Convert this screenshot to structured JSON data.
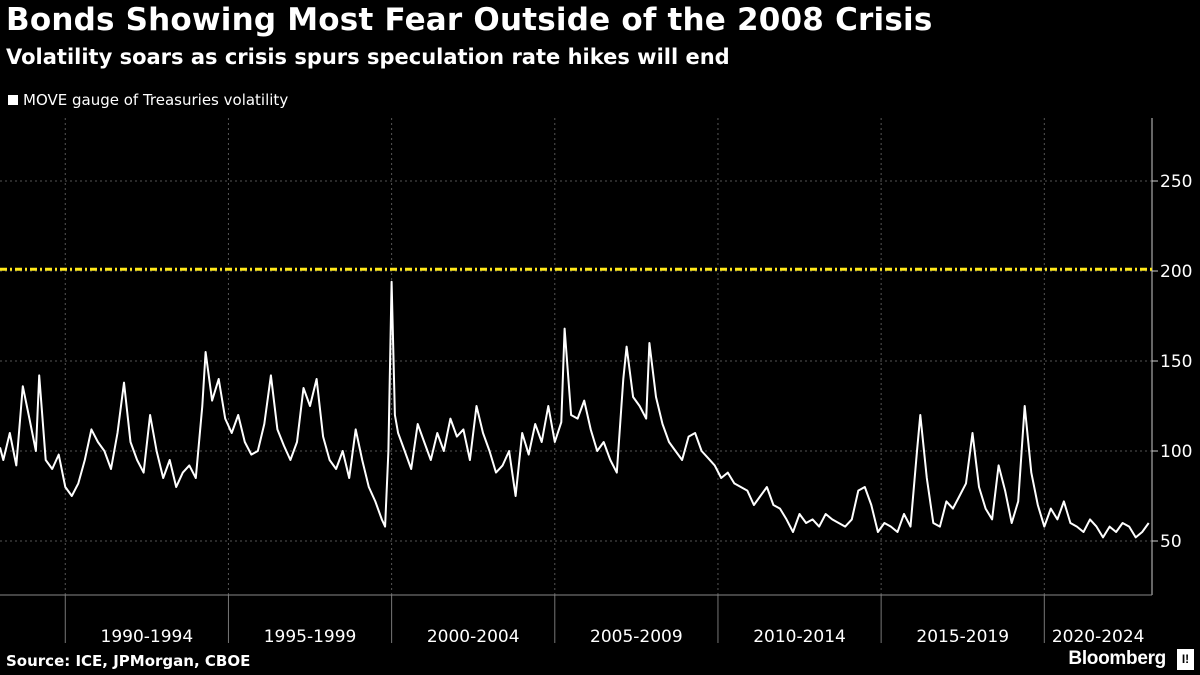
{
  "title": "Bonds Showing Most Fear Outside of the 2008 Crisis",
  "subtitle": "Volatility soars as crisis spurs speculation rate hikes will end",
  "source": "Source: ICE, JPMorgan, CBOE",
  "brand": "Bloomberg",
  "brand_mark": "I!",
  "colors": {
    "background": "#000000",
    "series": "#ffffff",
    "reference_line": "#ffe81a",
    "grid": "#555555"
  },
  "chart_data": {
    "type": "line",
    "x_unit": "year",
    "xlim": [
      1988.0,
      2023.3
    ],
    "ylim": [
      20,
      285
    ],
    "yticks": [
      50,
      100,
      150,
      200,
      250
    ],
    "y_axis_position": "right",
    "grid": true,
    "legend_position": "top-left",
    "x_periods": [
      "1990-1994",
      "1995-1999",
      "2000-2004",
      "2005-2009",
      "2010-2014",
      "2015-2019",
      "2020-2024"
    ],
    "reference_line": {
      "y": 201,
      "style": "dash-dot",
      "color": "#ffe81a"
    },
    "series": [
      {
        "name": "MOVE gauge of Treasuries volatility",
        "color": "#ffffff",
        "points": [
          [
            1988.0,
            102
          ],
          [
            1988.1,
            95
          ],
          [
            1988.3,
            110
          ],
          [
            1988.5,
            92
          ],
          [
            1988.7,
            136
          ],
          [
            1988.9,
            118
          ],
          [
            1989.1,
            100
          ],
          [
            1989.2,
            142
          ],
          [
            1989.4,
            95
          ],
          [
            1989.6,
            90
          ],
          [
            1989.8,
            98
          ],
          [
            1990.0,
            80
          ],
          [
            1990.2,
            75
          ],
          [
            1990.4,
            82
          ],
          [
            1990.6,
            95
          ],
          [
            1990.8,
            112
          ],
          [
            1991.0,
            105
          ],
          [
            1991.2,
            100
          ],
          [
            1991.4,
            90
          ],
          [
            1991.6,
            110
          ],
          [
            1991.8,
            138
          ],
          [
            1992.0,
            105
          ],
          [
            1992.2,
            95
          ],
          [
            1992.4,
            88
          ],
          [
            1992.6,
            120
          ],
          [
            1992.8,
            100
          ],
          [
            1993.0,
            85
          ],
          [
            1993.2,
            95
          ],
          [
            1993.4,
            80
          ],
          [
            1993.6,
            88
          ],
          [
            1993.8,
            92
          ],
          [
            1994.0,
            85
          ],
          [
            1994.2,
            125
          ],
          [
            1994.3,
            155
          ],
          [
            1994.5,
            128
          ],
          [
            1994.7,
            140
          ],
          [
            1994.9,
            118
          ],
          [
            1995.1,
            110
          ],
          [
            1995.3,
            120
          ],
          [
            1995.5,
            105
          ],
          [
            1995.7,
            98
          ],
          [
            1995.9,
            100
          ],
          [
            1996.1,
            115
          ],
          [
            1996.3,
            142
          ],
          [
            1996.5,
            112
          ],
          [
            1996.7,
            103
          ],
          [
            1996.9,
            95
          ],
          [
            1997.1,
            105
          ],
          [
            1997.3,
            135
          ],
          [
            1997.5,
            125
          ],
          [
            1997.7,
            140
          ],
          [
            1997.9,
            108
          ],
          [
            1998.1,
            95
          ],
          [
            1998.3,
            90
          ],
          [
            1998.5,
            100
          ],
          [
            1998.7,
            85
          ],
          [
            1998.9,
            112
          ],
          [
            1999.1,
            95
          ],
          [
            1999.3,
            80
          ],
          [
            1999.5,
            72
          ],
          [
            1999.7,
            62
          ],
          [
            1999.8,
            58
          ],
          [
            1999.9,
            100
          ],
          [
            2000.0,
            194
          ],
          [
            2000.1,
            120
          ],
          [
            2000.2,
            110
          ],
          [
            2000.4,
            100
          ],
          [
            2000.6,
            90
          ],
          [
            2000.8,
            115
          ],
          [
            2001.0,
            105
          ],
          [
            2001.2,
            95
          ],
          [
            2001.4,
            110
          ],
          [
            2001.6,
            100
          ],
          [
            2001.8,
            118
          ],
          [
            2002.0,
            108
          ],
          [
            2002.2,
            112
          ],
          [
            2002.4,
            95
          ],
          [
            2002.6,
            125
          ],
          [
            2002.8,
            110
          ],
          [
            2003.0,
            100
          ],
          [
            2003.2,
            88
          ],
          [
            2003.4,
            92
          ],
          [
            2003.6,
            100
          ],
          [
            2003.8,
            75
          ],
          [
            2004.0,
            110
          ],
          [
            2004.2,
            98
          ],
          [
            2004.4,
            115
          ],
          [
            2004.6,
            105
          ],
          [
            2004.8,
            125
          ],
          [
            2005.0,
            105
          ],
          [
            2005.2,
            116
          ],
          [
            2005.3,
            168
          ],
          [
            2005.5,
            120
          ],
          [
            2005.7,
            118
          ],
          [
            2005.9,
            128
          ],
          [
            2006.1,
            112
          ],
          [
            2006.3,
            100
          ],
          [
            2006.5,
            105
          ],
          [
            2006.7,
            95
          ],
          [
            2006.9,
            88
          ],
          [
            2007.1,
            140
          ],
          [
            2007.2,
            158
          ],
          [
            2007.4,
            130
          ],
          [
            2007.6,
            125
          ],
          [
            2007.8,
            118
          ],
          [
            2007.9,
            160
          ],
          [
            2008.1,
            130
          ],
          [
            2008.3,
            115
          ],
          [
            2008.5,
            105
          ],
          [
            2008.7,
            100
          ],
          [
            2008.9,
            95
          ],
          [
            2009.1,
            108
          ],
          [
            2009.3,
            110
          ],
          [
            2009.5,
            100
          ],
          [
            2009.7,
            96
          ],
          [
            2009.9,
            92
          ],
          [
            2010.1,
            85
          ],
          [
            2010.3,
            88
          ],
          [
            2010.5,
            82
          ],
          [
            2010.7,
            80
          ],
          [
            2010.9,
            78
          ],
          [
            2011.1,
            70
          ],
          [
            2011.3,
            75
          ],
          [
            2011.5,
            80
          ],
          [
            2011.7,
            70
          ],
          [
            2011.9,
            68
          ],
          [
            2012.1,
            62
          ],
          [
            2012.3,
            55
          ],
          [
            2012.5,
            65
          ],
          [
            2012.7,
            60
          ],
          [
            2012.9,
            62
          ],
          [
            2013.1,
            58
          ],
          [
            2013.3,
            65
          ],
          [
            2013.5,
            62
          ],
          [
            2013.7,
            60
          ],
          [
            2013.9,
            58
          ],
          [
            2014.1,
            62
          ],
          [
            2014.3,
            78
          ],
          [
            2014.5,
            80
          ],
          [
            2014.7,
            70
          ],
          [
            2014.9,
            55
          ],
          [
            2015.1,
            60
          ],
          [
            2015.3,
            58
          ],
          [
            2015.5,
            55
          ],
          [
            2015.7,
            65
          ],
          [
            2015.9,
            58
          ],
          [
            2016.1,
            100
          ],
          [
            2016.2,
            120
          ],
          [
            2016.4,
            85
          ],
          [
            2016.6,
            60
          ],
          [
            2016.8,
            58
          ],
          [
            2017.0,
            72
          ],
          [
            2017.2,
            68
          ],
          [
            2017.4,
            75
          ],
          [
            2017.6,
            82
          ],
          [
            2017.8,
            110
          ],
          [
            2018.0,
            80
          ],
          [
            2018.2,
            68
          ],
          [
            2018.4,
            62
          ],
          [
            2018.6,
            92
          ],
          [
            2018.8,
            78
          ],
          [
            2019.0,
            60
          ],
          [
            2019.2,
            72
          ],
          [
            2019.4,
            125
          ],
          [
            2019.6,
            88
          ],
          [
            2019.8,
            70
          ],
          [
            2020.0,
            58
          ],
          [
            2020.2,
            68
          ],
          [
            2020.4,
            62
          ],
          [
            2020.6,
            72
          ],
          [
            2020.8,
            60
          ],
          [
            2021.0,
            58
          ],
          [
            2021.2,
            55
          ],
          [
            2021.4,
            62
          ],
          [
            2021.6,
            58
          ],
          [
            2021.8,
            52
          ],
          [
            2022.0,
            58
          ],
          [
            2022.2,
            55
          ],
          [
            2022.4,
            60
          ],
          [
            2022.6,
            58
          ],
          [
            2022.8,
            52
          ],
          [
            2023.0,
            55
          ],
          [
            2023.2,
            60
          ]
        ]
      }
    ]
  }
}
